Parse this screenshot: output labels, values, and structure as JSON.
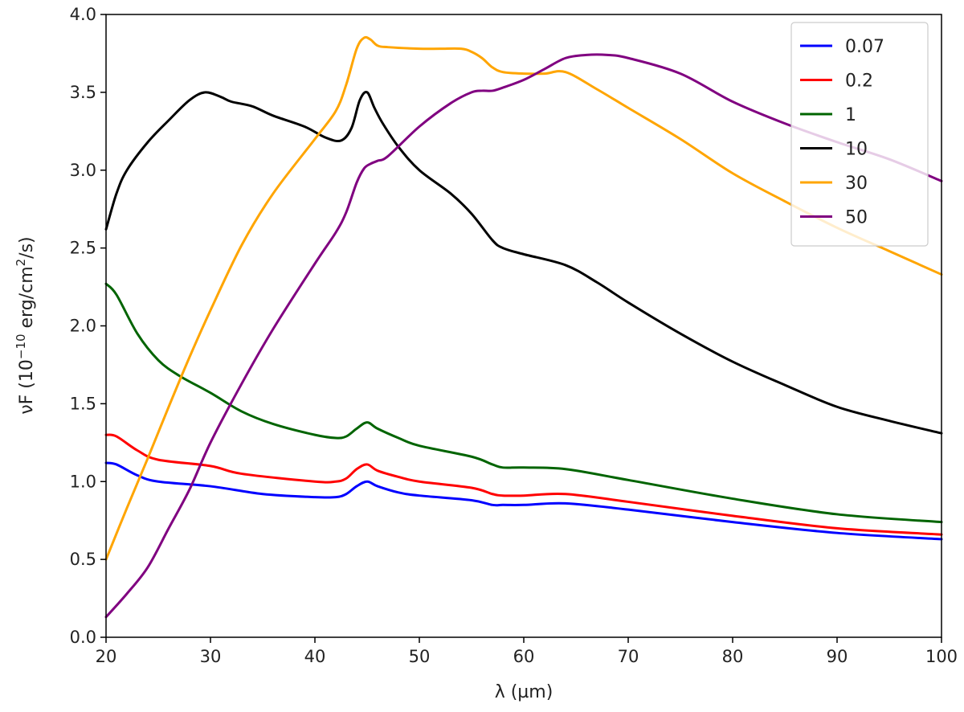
{
  "chart_data": {
    "type": "line",
    "xlabel": "λ (µm)",
    "ylabel_main": "νF (10",
    "ylabel_exp1": "−10",
    "ylabel_mid": " erg/cm",
    "ylabel_exp2": "2",
    "ylabel_end": "/s)",
    "xlim": [
      20,
      100
    ],
    "ylim": [
      0,
      4
    ],
    "xticks": [
      20,
      30,
      40,
      50,
      60,
      70,
      80,
      90,
      100
    ],
    "xtick_labels": [
      "20",
      "30",
      "40",
      "50",
      "60",
      "70",
      "80",
      "90",
      "100"
    ],
    "yticks": [
      0,
      0.5,
      1,
      1.5,
      2,
      2.5,
      3,
      3.5,
      4
    ],
    "ytick_labels": [
      "0.0",
      "0.5",
      "1.0",
      "1.5",
      "2.0",
      "2.5",
      "3.0",
      "3.5",
      "4.0"
    ],
    "grid": false,
    "legend_position": "top-right",
    "series": [
      {
        "name": "0.07",
        "color": "#0000ff",
        "x": [
          20,
          21,
          23,
          25,
          30,
          35,
          40,
          42,
          43,
          44,
          45,
          46,
          48,
          50,
          55,
          57,
          58,
          60,
          64,
          70,
          80,
          90,
          100
        ],
        "y": [
          1.12,
          1.11,
          1.04,
          1.0,
          0.97,
          0.92,
          0.9,
          0.9,
          0.92,
          0.97,
          1.0,
          0.97,
          0.93,
          0.91,
          0.88,
          0.85,
          0.85,
          0.85,
          0.86,
          0.82,
          0.74,
          0.67,
          0.63
        ]
      },
      {
        "name": "0.2",
        "color": "#ff0000",
        "x": [
          20,
          21,
          23,
          25,
          30,
          33,
          40,
          42,
          43,
          44,
          45,
          46,
          48,
          50,
          55,
          57,
          58,
          60,
          64,
          70,
          80,
          90,
          100
        ],
        "y": [
          1.3,
          1.29,
          1.2,
          1.14,
          1.1,
          1.05,
          1.0,
          1.0,
          1.02,
          1.08,
          1.11,
          1.07,
          1.03,
          1.0,
          0.96,
          0.92,
          0.91,
          0.91,
          0.92,
          0.87,
          0.78,
          0.7,
          0.66
        ]
      },
      {
        "name": "1",
        "color": "#006400",
        "x": [
          20,
          21,
          23,
          25,
          27,
          30,
          33,
          36,
          40,
          42,
          43,
          44,
          45,
          46,
          48,
          50,
          55,
          57,
          58,
          60,
          64,
          70,
          80,
          90,
          100
        ],
        "y": [
          2.27,
          2.2,
          1.95,
          1.78,
          1.68,
          1.57,
          1.45,
          1.37,
          1.3,
          1.28,
          1.29,
          1.34,
          1.38,
          1.34,
          1.28,
          1.23,
          1.16,
          1.11,
          1.09,
          1.09,
          1.08,
          1.01,
          0.89,
          0.79,
          0.74
        ]
      },
      {
        "name": "10",
        "color": "#000000",
        "x": [
          20,
          21,
          22,
          24,
          26,
          28,
          29.5,
          31,
          32,
          34,
          36,
          39,
          41,
          42.5,
          43.5,
          44.3,
          45,
          45.7,
          46.5,
          48,
          50,
          53,
          55,
          57,
          58,
          60,
          64,
          67,
          70,
          75,
          80,
          85,
          90,
          95,
          100
        ],
        "y": [
          2.62,
          2.85,
          3.0,
          3.18,
          3.32,
          3.45,
          3.5,
          3.47,
          3.44,
          3.41,
          3.35,
          3.28,
          3.21,
          3.19,
          3.27,
          3.45,
          3.5,
          3.4,
          3.3,
          3.15,
          3.0,
          2.85,
          2.72,
          2.55,
          2.5,
          2.46,
          2.39,
          2.28,
          2.15,
          1.95,
          1.77,
          1.62,
          1.48,
          1.39,
          1.31
        ]
      },
      {
        "name": "30",
        "color": "#ffa500",
        "x": [
          20,
          22,
          24,
          26,
          28,
          30,
          33,
          36,
          40,
          42,
          43,
          44,
          44.7,
          45.3,
          46,
          47,
          50,
          52,
          54,
          55,
          56,
          57,
          58,
          60,
          62,
          64,
          67,
          70,
          75,
          80,
          85,
          90,
          95,
          100
        ],
        "y": [
          0.5,
          0.83,
          1.15,
          1.48,
          1.8,
          2.1,
          2.52,
          2.85,
          3.2,
          3.38,
          3.55,
          3.78,
          3.85,
          3.84,
          3.8,
          3.79,
          3.78,
          3.78,
          3.78,
          3.76,
          3.72,
          3.66,
          3.63,
          3.62,
          3.62,
          3.63,
          3.52,
          3.4,
          3.2,
          2.98,
          2.8,
          2.63,
          2.48,
          2.33
        ]
      },
      {
        "name": "50",
        "color": "#800080",
        "x": [
          20,
          22,
          24,
          26,
          28,
          30,
          33,
          36,
          40,
          42,
          43,
          44,
          44.7,
          45.3,
          46,
          47,
          50,
          53,
          55,
          56,
          57,
          58,
          60,
          62,
          64,
          66,
          68,
          70,
          75,
          80,
          85,
          90,
          95,
          100
        ],
        "y": [
          0.13,
          0.28,
          0.45,
          0.7,
          0.95,
          1.25,
          1.63,
          1.98,
          2.4,
          2.6,
          2.73,
          2.92,
          3.01,
          3.04,
          3.06,
          3.09,
          3.28,
          3.43,
          3.5,
          3.51,
          3.51,
          3.53,
          3.58,
          3.65,
          3.72,
          3.74,
          3.74,
          3.72,
          3.62,
          3.44,
          3.3,
          3.18,
          3.07,
          2.93
        ]
      }
    ]
  }
}
